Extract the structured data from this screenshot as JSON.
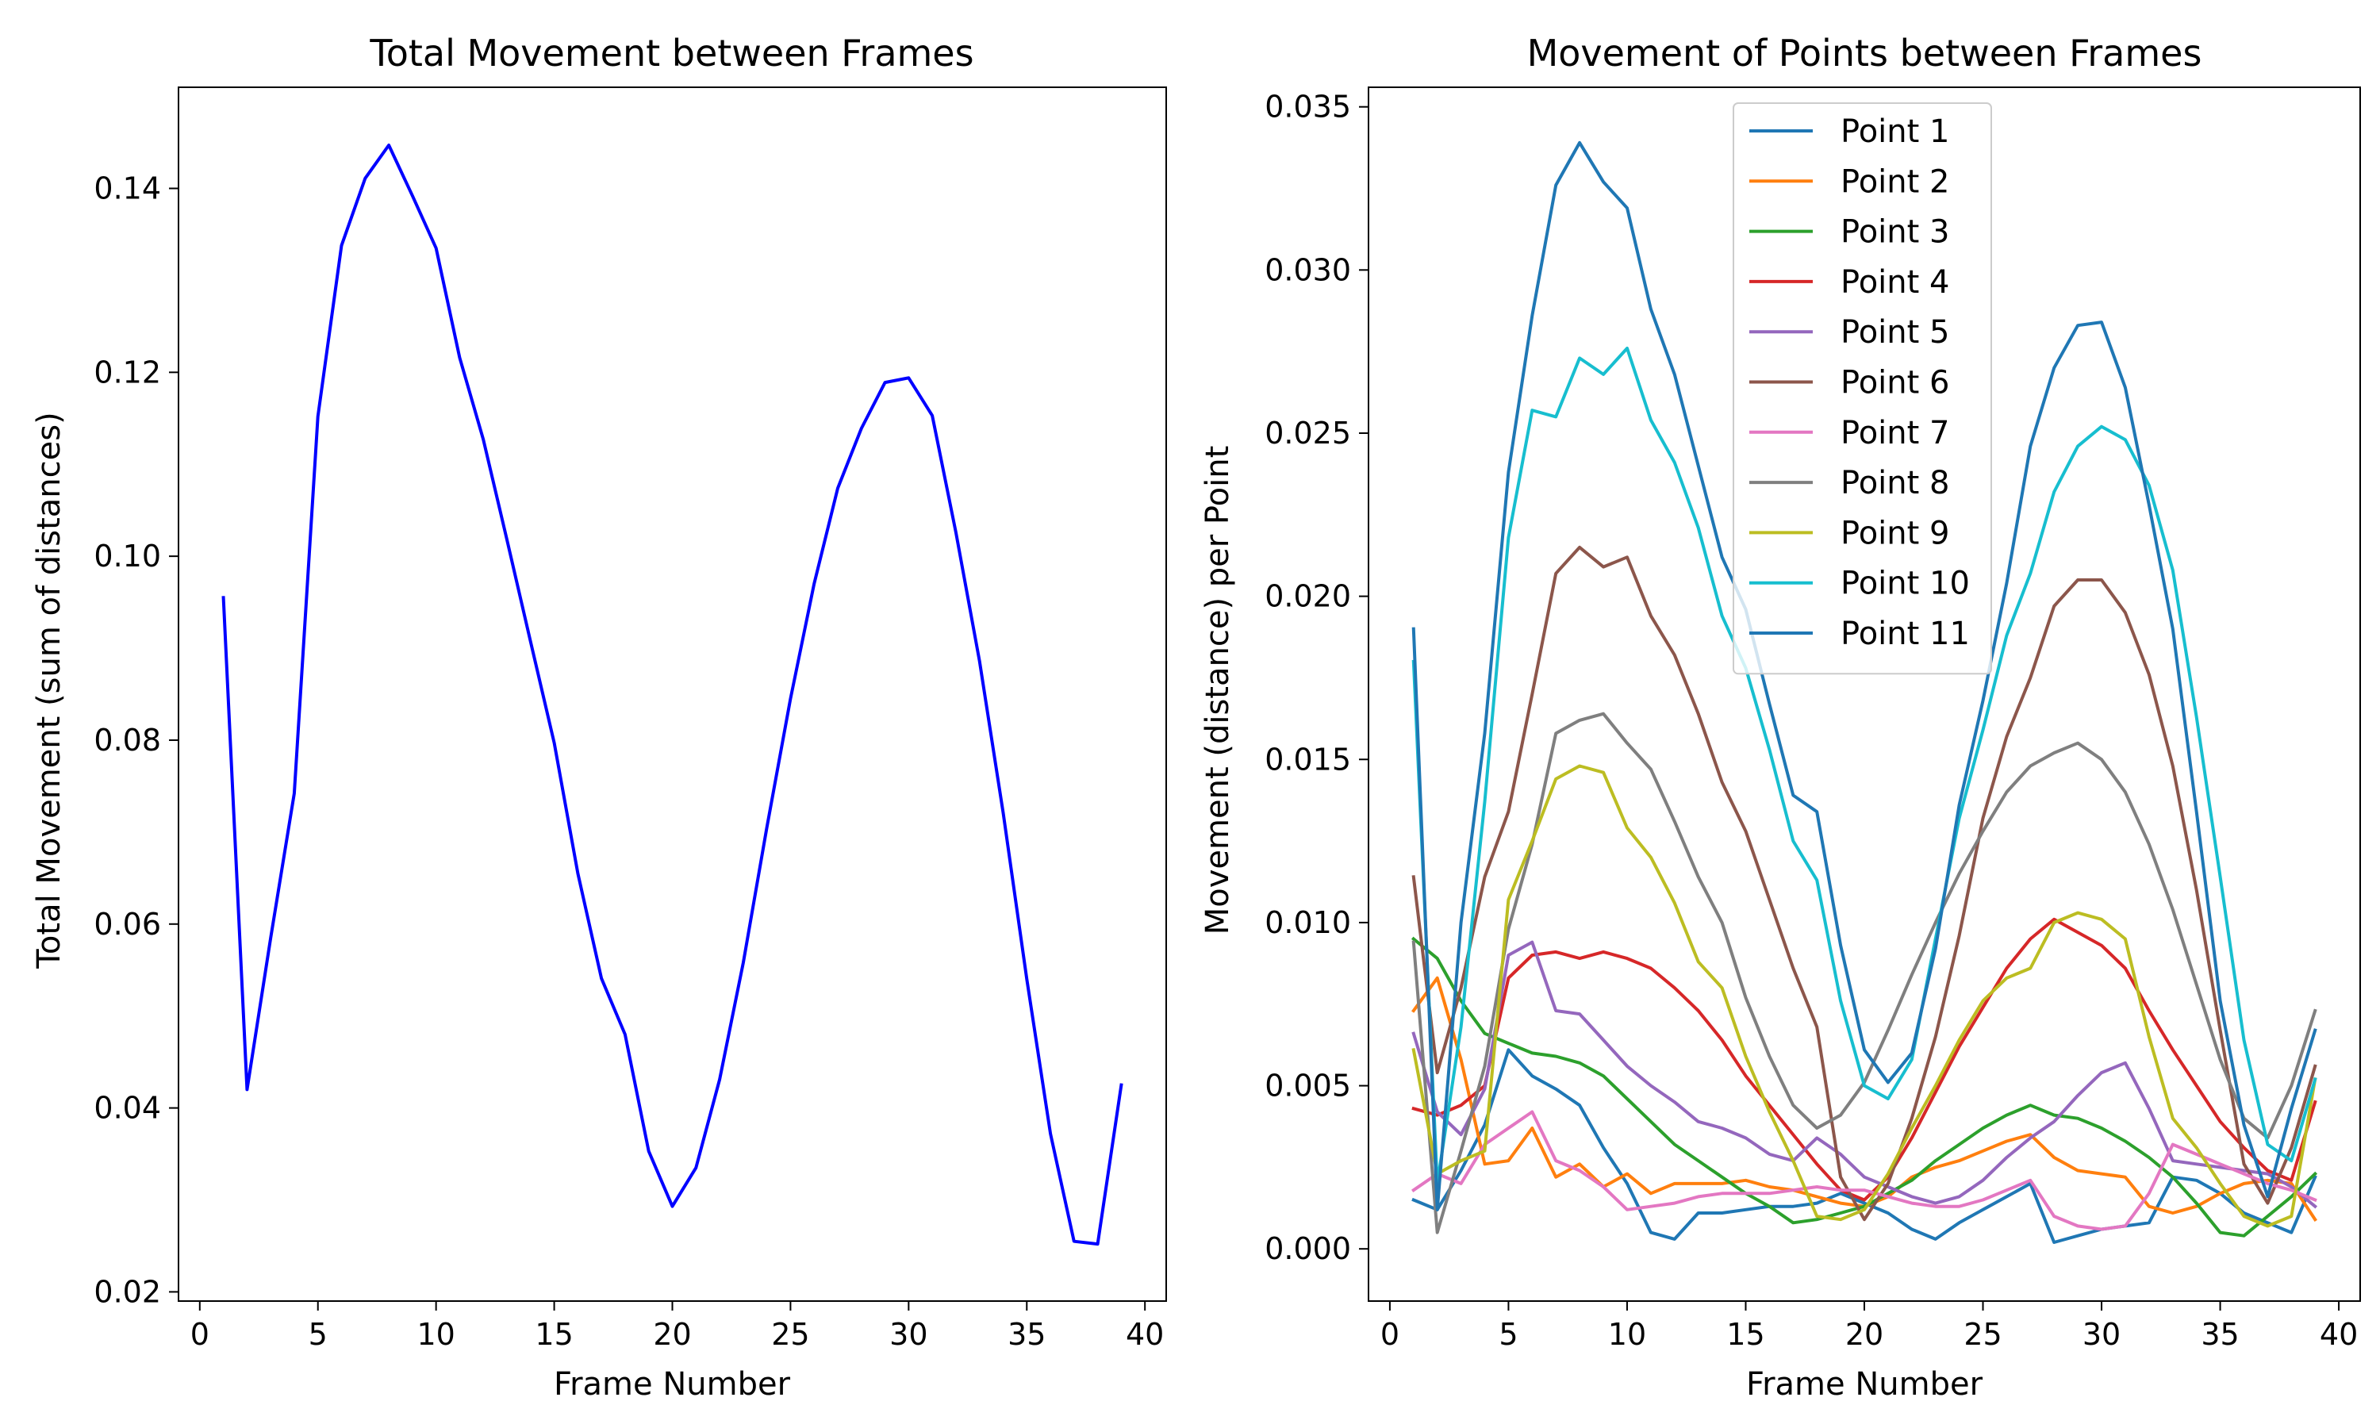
{
  "chart_data": [
    {
      "type": "line",
      "title": "Total Movement between Frames",
      "xlabel": "Frame Number",
      "ylabel": "Total Movement (sum of distances)",
      "xlim": [
        -0.9,
        40.9
      ],
      "ylim": [
        0.019,
        0.151
      ],
      "xticks": [
        0,
        5,
        10,
        15,
        20,
        25,
        30,
        35,
        40
      ],
      "xtick_labels": [
        "0",
        "5",
        "10",
        "15",
        "20",
        "25",
        "30",
        "35",
        "40"
      ],
      "yticks": [
        0.02,
        0.04,
        0.06,
        0.08,
        0.1,
        0.12,
        0.14
      ],
      "ytick_labels": [
        "0.02",
        "0.04",
        "0.06",
        "0.08",
        "0.10",
        "0.12",
        "0.14"
      ],
      "grid": false,
      "x": [
        1,
        2,
        3,
        4,
        5,
        6,
        7,
        8,
        9,
        10,
        11,
        12,
        13,
        14,
        15,
        16,
        17,
        18,
        19,
        20,
        21,
        22,
        23,
        24,
        25,
        26,
        27,
        28,
        29,
        30,
        31,
        32,
        33,
        34,
        35,
        36,
        37,
        38,
        39
      ],
      "series": [
        {
          "color": "#0000ff",
          "values": [
            0.0955,
            0.042,
            0.0585,
            0.0742,
            0.1152,
            0.1338,
            0.1411,
            0.1447,
            0.1392,
            0.1335,
            0.1216,
            0.1127,
            0.1018,
            0.0907,
            0.0797,
            0.0655,
            0.0541,
            0.048,
            0.0353,
            0.0293,
            0.0335,
            0.0431,
            0.0558,
            0.0705,
            0.0845,
            0.097,
            0.1074,
            0.1139,
            0.1189,
            0.1194,
            0.1153,
            0.1026,
            0.0886,
            0.0721,
            0.054,
            0.0372,
            0.0255,
            0.0252,
            0.0425
          ]
        }
      ]
    },
    {
      "type": "line",
      "title": "Movement of Points between Frames",
      "xlabel": "Frame Number",
      "ylabel": "Movement (distance) per Point",
      "xlim": [
        -0.9,
        40.9
      ],
      "ylim": [
        -0.0016,
        0.0356
      ],
      "xticks": [
        0,
        5,
        10,
        15,
        20,
        25,
        30,
        35,
        40
      ],
      "xtick_labels": [
        "0",
        "5",
        "10",
        "15",
        "20",
        "25",
        "30",
        "35",
        "40"
      ],
      "yticks": [
        0.0,
        0.005,
        0.01,
        0.015,
        0.02,
        0.025,
        0.03,
        0.035
      ],
      "ytick_labels": [
        "0.000",
        "0.005",
        "0.010",
        "0.015",
        "0.020",
        "0.025",
        "0.030",
        "0.035"
      ],
      "grid": false,
      "legend": "top-center",
      "x": [
        1,
        2,
        3,
        4,
        5,
        6,
        7,
        8,
        9,
        10,
        11,
        12,
        13,
        14,
        15,
        16,
        17,
        18,
        19,
        20,
        21,
        22,
        23,
        24,
        25,
        26,
        27,
        28,
        29,
        30,
        31,
        32,
        33,
        34,
        35,
        36,
        37,
        38,
        39
      ],
      "series": [
        {
          "name": "Point 1",
          "color": "#1f77b4",
          "values": [
            0.0015,
            0.0012,
            0.0024,
            0.0038,
            0.0061,
            0.0053,
            0.0049,
            0.0044,
            0.0031,
            0.002,
            0.0005,
            0.0003,
            0.0011,
            0.0011,
            0.0012,
            0.0013,
            0.0013,
            0.0014,
            0.0017,
            0.0014,
            0.0011,
            0.0006,
            0.0003,
            0.0008,
            0.0012,
            0.0016,
            0.002,
            0.0002,
            0.0004,
            0.0006,
            0.0007,
            0.0008,
            0.0022,
            0.0021,
            0.0017,
            0.0011,
            0.0008,
            0.0005,
            0.0022
          ]
        },
        {
          "name": "Point 2",
          "color": "#ff7f0e",
          "values": [
            0.0073,
            0.0083,
            0.0058,
            0.0026,
            0.0027,
            0.0037,
            0.0022,
            0.0026,
            0.0019,
            0.0023,
            0.0017,
            0.002,
            0.002,
            0.002,
            0.0021,
            0.0019,
            0.0018,
            0.0016,
            0.0014,
            0.0013,
            0.0016,
            0.0022,
            0.0025,
            0.0027,
            0.003,
            0.0033,
            0.0035,
            0.0028,
            0.0024,
            0.0023,
            0.0022,
            0.0013,
            0.0011,
            0.0013,
            0.0017,
            0.002,
            0.0021,
            0.002,
            0.0009
          ]
        },
        {
          "name": "Point 3",
          "color": "#2ca02c",
          "values": [
            0.0095,
            0.0089,
            0.0076,
            0.0066,
            0.0063,
            0.006,
            0.0059,
            0.0057,
            0.0053,
            0.0046,
            0.0039,
            0.0032,
            0.0027,
            0.0022,
            0.0017,
            0.0013,
            0.0008,
            0.0009,
            0.0011,
            0.0013,
            0.0017,
            0.0021,
            0.0027,
            0.0032,
            0.0037,
            0.0041,
            0.0044,
            0.0041,
            0.004,
            0.0037,
            0.0033,
            0.0028,
            0.0022,
            0.0014,
            0.0005,
            0.0004,
            0.001,
            0.0016,
            0.0023
          ]
        },
        {
          "name": "Point 4",
          "color": "#d62728",
          "values": [
            0.0043,
            0.0041,
            0.0044,
            0.005,
            0.0083,
            0.009,
            0.0091,
            0.0089,
            0.0091,
            0.0089,
            0.0086,
            0.008,
            0.0073,
            0.0064,
            0.0053,
            0.0044,
            0.0035,
            0.0026,
            0.0018,
            0.0015,
            0.0022,
            0.0034,
            0.0048,
            0.0062,
            0.0074,
            0.0086,
            0.0095,
            0.0101,
            0.0097,
            0.0093,
            0.0086,
            0.0073,
            0.0061,
            0.005,
            0.0039,
            0.0031,
            0.0024,
            0.0021,
            0.0045
          ]
        },
        {
          "name": "Point 5",
          "color": "#9467bd",
          "values": [
            0.0066,
            0.0042,
            0.0035,
            0.0049,
            0.009,
            0.0094,
            0.0073,
            0.0072,
            0.0064,
            0.0056,
            0.005,
            0.0045,
            0.0039,
            0.0037,
            0.0034,
            0.0029,
            0.0027,
            0.0034,
            0.0029,
            0.0022,
            0.0019,
            0.0016,
            0.0014,
            0.0016,
            0.0021,
            0.0028,
            0.0034,
            0.0039,
            0.0047,
            0.0054,
            0.0057,
            0.0043,
            0.0027,
            0.0026,
            0.0025,
            0.0024,
            0.0023,
            0.0019,
            0.0013
          ]
        },
        {
          "name": "Point 6",
          "color": "#8c564b",
          "values": [
            0.0114,
            0.0054,
            0.008,
            0.0114,
            0.0134,
            0.017,
            0.0207,
            0.0215,
            0.0209,
            0.0212,
            0.0194,
            0.0182,
            0.0164,
            0.0143,
            0.0128,
            0.0107,
            0.0086,
            0.0068,
            0.0022,
            0.0009,
            0.002,
            0.004,
            0.0065,
            0.0096,
            0.0132,
            0.0157,
            0.0175,
            0.0197,
            0.0205,
            0.0205,
            0.0195,
            0.0176,
            0.0148,
            0.011,
            0.0067,
            0.0026,
            0.0014,
            0.0031,
            0.0056
          ]
        },
        {
          "name": "Point 7",
          "color": "#e377c2",
          "values": [
            0.0018,
            0.0023,
            0.002,
            0.0032,
            0.0037,
            0.0042,
            0.0027,
            0.0024,
            0.0019,
            0.0012,
            0.0013,
            0.0014,
            0.0016,
            0.0017,
            0.0017,
            0.0017,
            0.0018,
            0.0019,
            0.0018,
            0.0018,
            0.0016,
            0.0014,
            0.0013,
            0.0013,
            0.0015,
            0.0018,
            0.0021,
            0.001,
            0.0007,
            0.0006,
            0.0007,
            0.0017,
            0.0032,
            0.0029,
            0.0026,
            0.0023,
            0.002,
            0.0018,
            0.0015
          ]
        },
        {
          "name": "Point 8",
          "color": "#7f7f7f",
          "values": [
            0.0094,
            0.0005,
            0.003,
            0.0056,
            0.0098,
            0.0124,
            0.0158,
            0.0162,
            0.0164,
            0.0155,
            0.0147,
            0.0131,
            0.0114,
            0.01,
            0.0077,
            0.0059,
            0.0044,
            0.0037,
            0.0041,
            0.0051,
            0.0067,
            0.0084,
            0.01,
            0.0115,
            0.0128,
            0.014,
            0.0148,
            0.0152,
            0.0155,
            0.015,
            0.014,
            0.0124,
            0.0104,
            0.0081,
            0.0058,
            0.004,
            0.0034,
            0.005,
            0.0073
          ]
        },
        {
          "name": "Point 9",
          "color": "#bcbd22",
          "values": [
            0.0061,
            0.0023,
            0.0027,
            0.003,
            0.0107,
            0.0125,
            0.0144,
            0.0148,
            0.0146,
            0.0129,
            0.012,
            0.0106,
            0.0088,
            0.008,
            0.0059,
            0.0042,
            0.0027,
            0.001,
            0.0009,
            0.0012,
            0.0023,
            0.0037,
            0.005,
            0.0064,
            0.0076,
            0.0083,
            0.0086,
            0.01,
            0.0103,
            0.0101,
            0.0095,
            0.0065,
            0.004,
            0.0031,
            0.002,
            0.001,
            0.0007,
            0.001,
            0.0052
          ]
        },
        {
          "name": "Point 10",
          "color": "#17becf",
          "values": [
            0.018,
            0.002,
            0.0068,
            0.0137,
            0.0218,
            0.0257,
            0.0255,
            0.0273,
            0.0268,
            0.0276,
            0.0254,
            0.0241,
            0.0221,
            0.0194,
            0.0178,
            0.0153,
            0.0125,
            0.0113,
            0.0076,
            0.005,
            0.0046,
            0.0058,
            0.0095,
            0.0132,
            0.0159,
            0.0188,
            0.0207,
            0.0232,
            0.0246,
            0.0252,
            0.0248,
            0.0234,
            0.0208,
            0.0163,
            0.0114,
            0.0064,
            0.0032,
            0.0027,
            0.0052
          ]
        },
        {
          "name": "Point 11",
          "color": "#1f77b4",
          "values": [
            0.019,
            0.0012,
            0.01,
            0.0158,
            0.0238,
            0.0286,
            0.0326,
            0.0339,
            0.0327,
            0.0319,
            0.0288,
            0.0268,
            0.024,
            0.0212,
            0.0196,
            0.0167,
            0.0139,
            0.0134,
            0.0093,
            0.0061,
            0.0051,
            0.006,
            0.0092,
            0.0136,
            0.0168,
            0.0204,
            0.0246,
            0.027,
            0.0283,
            0.0284,
            0.0264,
            0.0228,
            0.019,
            0.0134,
            0.0076,
            0.0038,
            0.0016,
            0.0043,
            0.0067
          ]
        }
      ]
    }
  ]
}
